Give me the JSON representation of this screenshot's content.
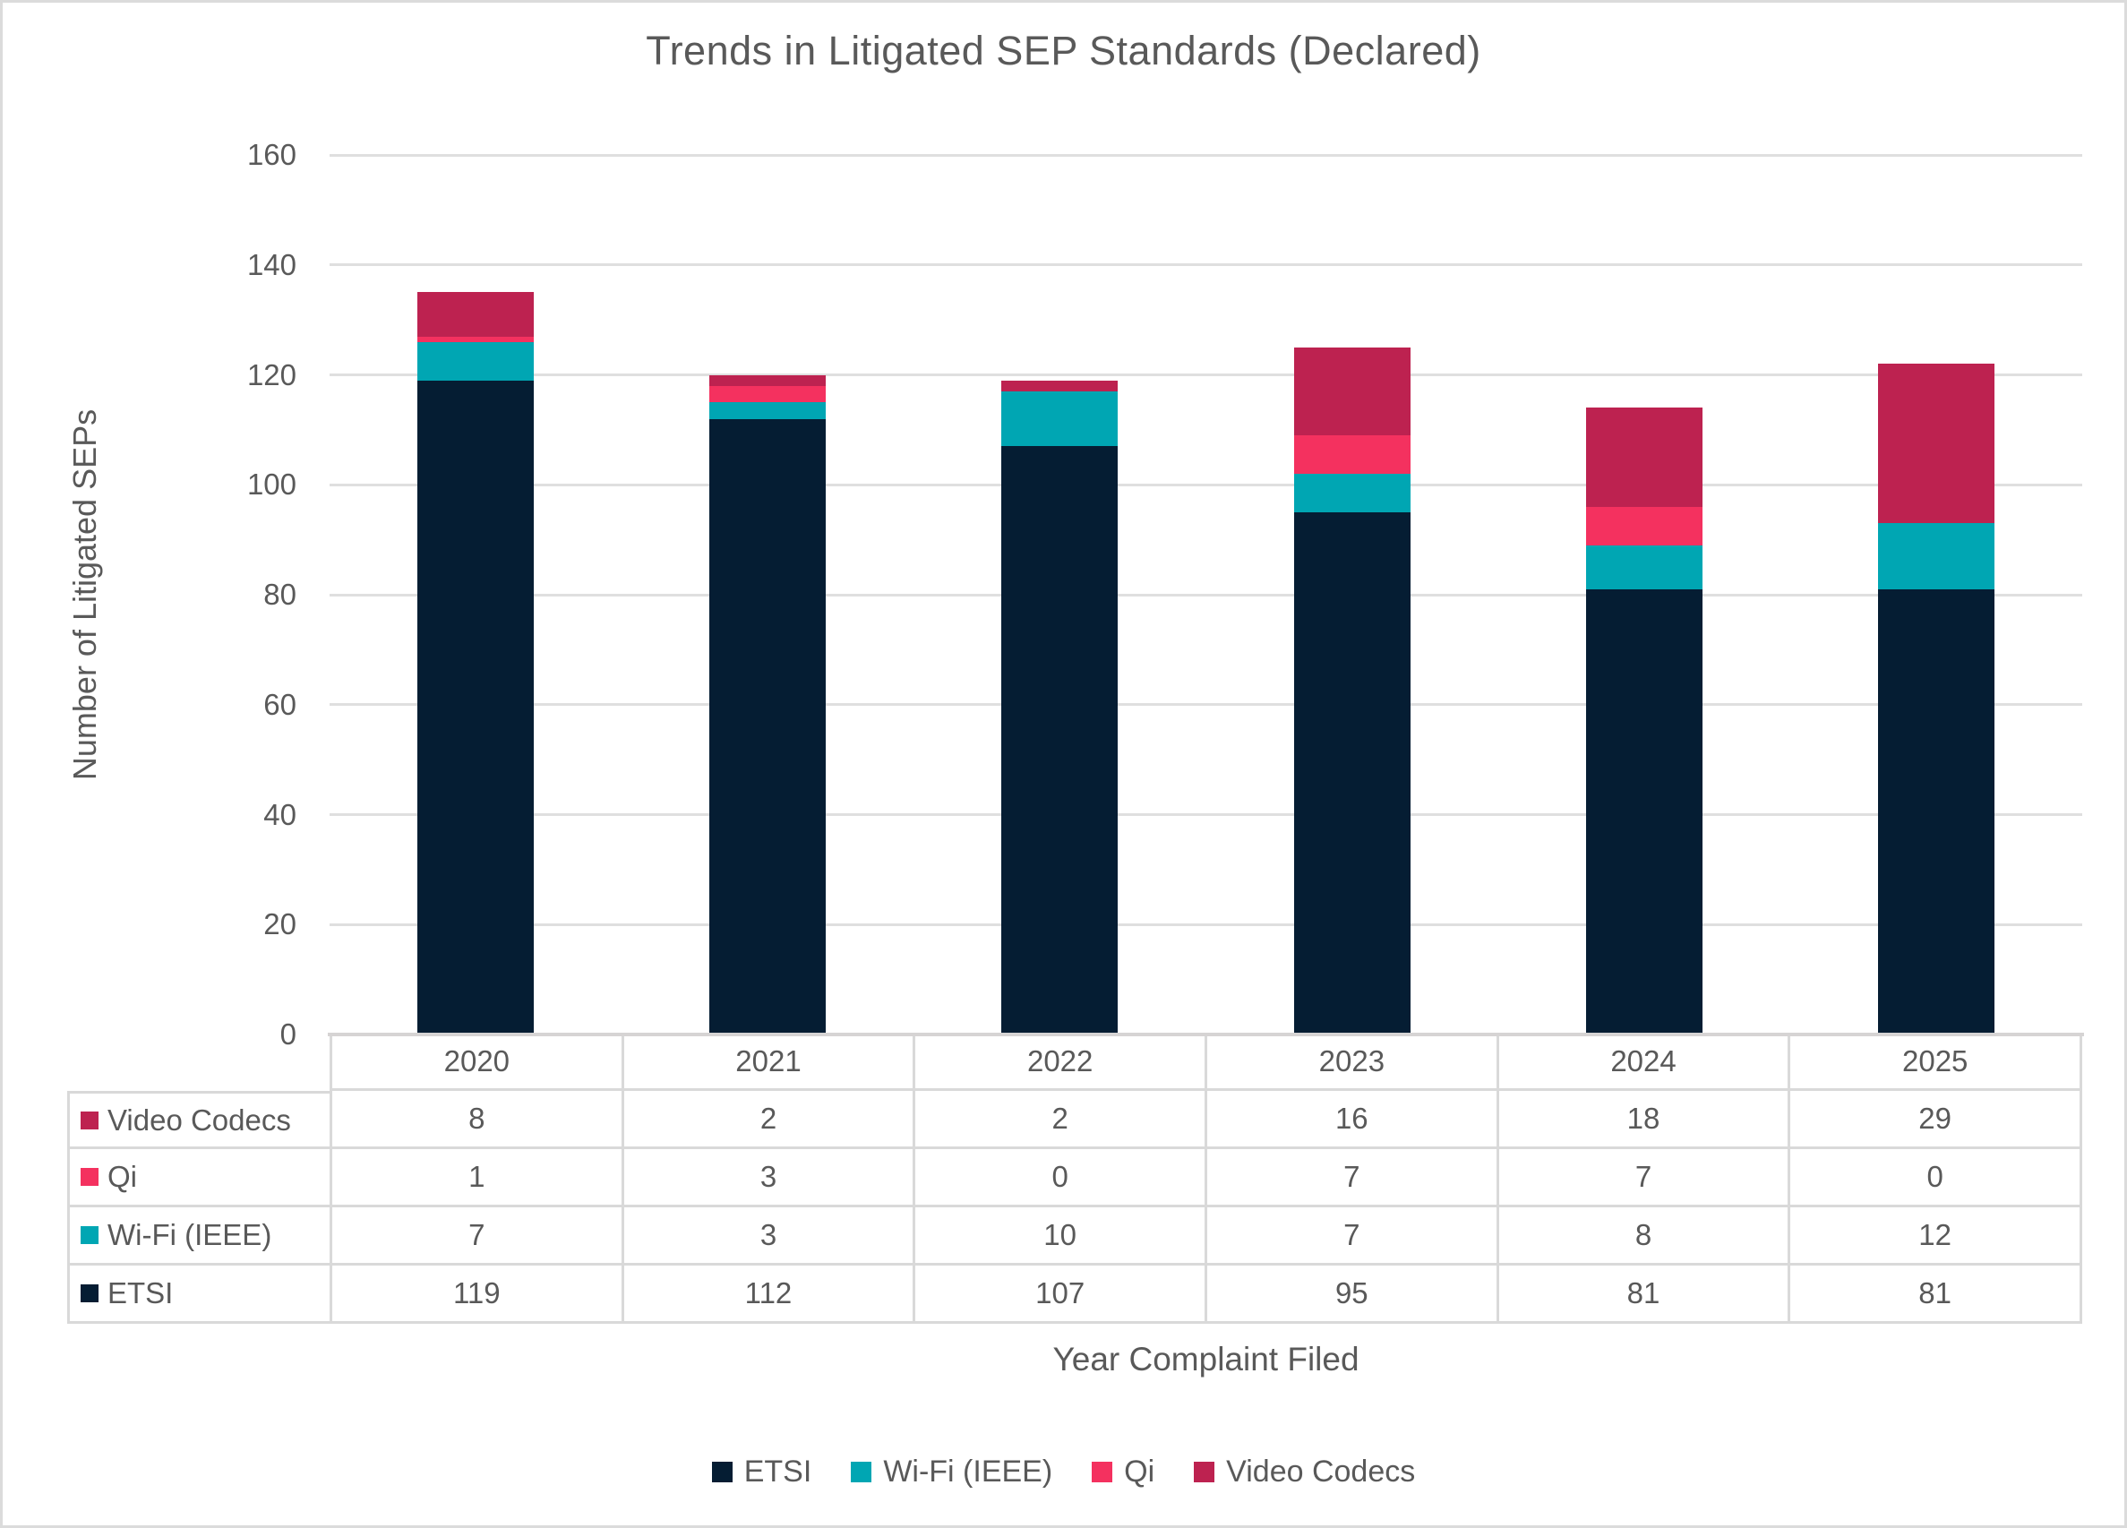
{
  "title": "Trends in Litigated SEP Standards (Declared)",
  "y_axis": {
    "title": "Number of Litigated SEPs",
    "min": 0,
    "max": 160,
    "step": 20,
    "tick_labels": [
      "0",
      "20",
      "40",
      "60",
      "80",
      "100",
      "120",
      "140",
      "160"
    ]
  },
  "x_axis": {
    "title": "Year Complaint Filed"
  },
  "colors": {
    "text_gray": "#595959",
    "gridline": "#DFDFDF",
    "axis_line": "#D6D4D4",
    "table_border": "#D9D9D9",
    "frame_border": "#DBDBDB"
  },
  "chart_data": {
    "type": "bar",
    "stacked": true,
    "title": "Trends in Litigated SEP Standards (Declared)",
    "xlabel": "Year Complaint Filed",
    "ylabel": "Number of Litigated SEPs",
    "ylim": [
      0,
      160
    ],
    "grid": true,
    "legend_position": "bottom",
    "categories": [
      "2020",
      "2021",
      "2022",
      "2023",
      "2024",
      "2025"
    ],
    "series": [
      {
        "name": "ETSI",
        "color": "#051D33",
        "values": [
          119,
          112,
          107,
          95,
          81,
          81
        ]
      },
      {
        "name": "Wi-Fi (IEEE)",
        "color": "#00A6B3",
        "values": [
          7,
          3,
          10,
          7,
          8,
          12
        ]
      },
      {
        "name": "Qi",
        "color": "#F4315F",
        "values": [
          1,
          3,
          0,
          7,
          7,
          0
        ]
      },
      {
        "name": "Video Codecs",
        "color": "#BD2250",
        "values": [
          8,
          2,
          2,
          16,
          18,
          29
        ]
      }
    ],
    "data_table_row_order": [
      "Video Codecs",
      "Qi",
      "Wi-Fi (IEEE)",
      "ETSI"
    ]
  },
  "legend": {
    "items": [
      "ETSI",
      "Wi-Fi (IEEE)",
      "Qi",
      "Video Codecs"
    ]
  }
}
